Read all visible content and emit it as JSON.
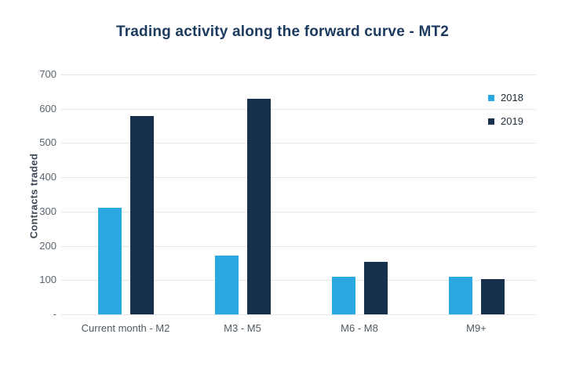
{
  "chart_data": {
    "type": "bar",
    "title": "Trading activity along the forward curve - MT2",
    "xlabel": "",
    "ylabel": "Contracts traded",
    "categories": [
      "Current month - M2",
      "M3 - M5",
      "M6 - M8",
      "M9+"
    ],
    "series": [
      {
        "name": "2018",
        "color": "#29A9E0",
        "values": [
          312,
          172,
          110,
          110
        ]
      },
      {
        "name": "2019",
        "color": "#17304E",
        "values": [
          578,
          628,
          153,
          103
        ]
      }
    ],
    "ylim": [
      0,
      700
    ],
    "ytick_step": 100,
    "ytick_labels": [
      "-",
      "100",
      "200",
      "300",
      "400",
      "500",
      "600",
      "700"
    ],
    "grid": true,
    "legend_position": "top-right"
  },
  "colors": {
    "title": "#1B3A5E",
    "grid": "#E4E6E8",
    "tick_text": "#5A6470",
    "axis_label_text": "#3D4855",
    "legend_text": "#22303C",
    "background": "#FFFFFF"
  }
}
